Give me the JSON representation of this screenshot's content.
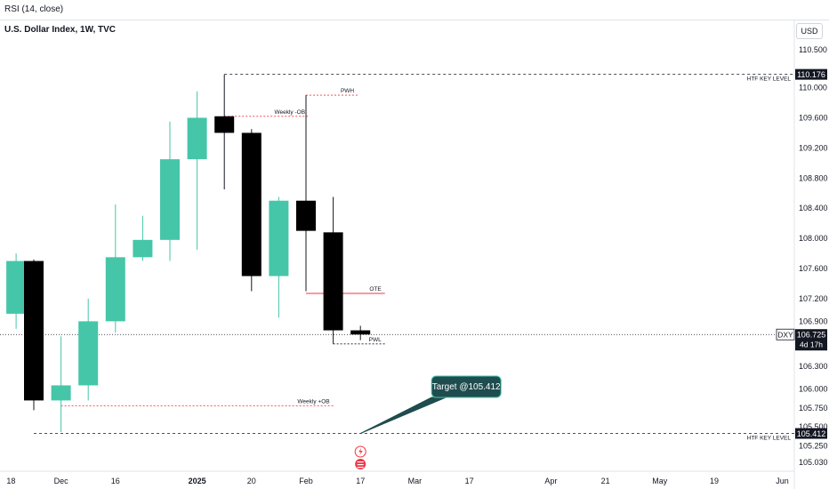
{
  "header": {
    "indicator": "RSI (14, close)",
    "title": "U.S. Dollar Index, 1W, TVC",
    "currency_button": "USD"
  },
  "chart_data": {
    "type": "candlestick",
    "yaxis": {
      "ticks": [
        "110.500",
        "110.000",
        "109.600",
        "109.200",
        "108.800",
        "108.400",
        "108.000",
        "107.600",
        "107.200",
        "106.900",
        "106.300",
        "106.000",
        "105.750",
        "105.500",
        "105.250",
        "105.030"
      ],
      "tick_values": [
        110.5,
        110.0,
        109.6,
        109.2,
        108.8,
        108.4,
        108.0,
        107.6,
        107.2,
        106.9,
        106.3,
        106.0,
        105.75,
        105.5,
        105.25,
        105.03
      ],
      "ylim": [
        104.97,
        110.62
      ]
    },
    "xaxis": {
      "ticks": [
        "18",
        "Dec",
        "16",
        "2025",
        "20",
        "Feb",
        "17",
        "Mar",
        "17",
        "Apr",
        "21",
        "May",
        "19",
        "Jun"
      ],
      "tick_index": [
        -1,
        1,
        3,
        6,
        8,
        10,
        12,
        14,
        16,
        19,
        21,
        23,
        25,
        27.5
      ]
    },
    "candles": [
      {
        "i": -0.65,
        "o": 107.0,
        "h": 107.8,
        "l": 106.8,
        "c": 107.7,
        "dir": "up"
      },
      {
        "i": 0,
        "o": 107.7,
        "h": 107.72,
        "l": 105.72,
        "c": 105.85,
        "dir": "down"
      },
      {
        "i": 1,
        "o": 105.85,
        "h": 106.7,
        "l": 105.43,
        "c": 106.05,
        "dir": "up"
      },
      {
        "i": 2,
        "o": 106.05,
        "h": 107.2,
        "l": 105.85,
        "c": 106.9,
        "dir": "up"
      },
      {
        "i": 3,
        "o": 106.9,
        "h": 108.45,
        "l": 106.75,
        "c": 107.75,
        "dir": "up"
      },
      {
        "i": 4,
        "o": 107.75,
        "h": 108.3,
        "l": 107.7,
        "c": 107.98,
        "dir": "up"
      },
      {
        "i": 5,
        "o": 107.98,
        "h": 109.55,
        "l": 107.7,
        "c": 109.05,
        "dir": "up"
      },
      {
        "i": 6,
        "o": 109.05,
        "h": 109.95,
        "l": 107.85,
        "c": 109.6,
        "dir": "up"
      },
      {
        "i": 7,
        "o": 109.62,
        "h": 110.176,
        "l": 108.65,
        "c": 109.4,
        "dir": "down"
      },
      {
        "i": 8,
        "o": 109.4,
        "h": 109.45,
        "l": 107.3,
        "c": 107.5,
        "dir": "down"
      },
      {
        "i": 9,
        "o": 107.5,
        "h": 108.55,
        "l": 106.95,
        "c": 108.5,
        "dir": "up"
      },
      {
        "i": 10,
        "o": 108.5,
        "h": 109.9,
        "l": 107.3,
        "c": 108.1,
        "dir": "down"
      },
      {
        "i": 11,
        "o": 108.08,
        "h": 108.55,
        "l": 106.6,
        "c": 106.78,
        "dir": "down"
      },
      {
        "i": 12,
        "o": 106.78,
        "h": 106.84,
        "l": 106.65,
        "c": 106.725,
        "dir": "down"
      }
    ],
    "levels": [
      {
        "name": "htf-high",
        "value": 110.176,
        "label": "HTF KEY LEVEL",
        "price_label": "110.176",
        "style": "dashed",
        "color": "#131722"
      },
      {
        "name": "htf-low",
        "value": 105.412,
        "label": "HTF KEY LEVEL",
        "price_label": "105.412",
        "style": "dashed",
        "color": "#131722"
      },
      {
        "name": "last-price",
        "value": 106.725,
        "style": "dotted",
        "color": "#131722"
      }
    ],
    "annotations": [
      {
        "name": "pwh",
        "label": "PWH",
        "value": 109.9,
        "from": 10,
        "to": 11.9,
        "color": "#f23645"
      },
      {
        "name": "weekly-neg-ob",
        "label": "Weekly -OB",
        "value": 109.62,
        "from": 7,
        "to": 10.1,
        "color": "#f23645"
      },
      {
        "name": "ote",
        "label": "OTE",
        "value": 107.27,
        "from": 10,
        "to": 12.9,
        "color": "#f23645"
      },
      {
        "name": "pwl",
        "label": "PWL",
        "value": 106.6,
        "from": 11,
        "to": 12.9,
        "color": "#131722"
      },
      {
        "name": "weekly-pos-ob",
        "label": "Weekly +OB",
        "value": 105.78,
        "from": 1,
        "to": 11,
        "color": "#f23645"
      }
    ],
    "callout": {
      "label": "Target @105.412",
      "value": 105.412
    },
    "price_badge": {
      "symbol": "DXY",
      "price": "106.725",
      "countdown": "4d 17h"
    },
    "colors": {
      "up": "#45c6a8",
      "down": "#000000",
      "label_bg": "#131722"
    }
  }
}
